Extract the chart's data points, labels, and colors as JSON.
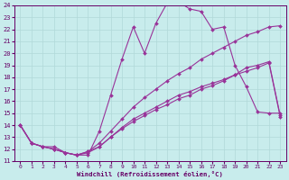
{
  "xlabel": "Windchill (Refroidissement éolien,°C)",
  "bg_color": "#c8ecec",
  "grid_color": "#b0d8d8",
  "line_color": "#993399",
  "xlim": [
    -0.5,
    23.5
  ],
  "ylim": [
    11,
    24
  ],
  "xticks": [
    0,
    1,
    2,
    3,
    4,
    5,
    6,
    7,
    8,
    9,
    10,
    11,
    12,
    13,
    14,
    15,
    16,
    17,
    18,
    19,
    20,
    21,
    22,
    23
  ],
  "yticks": [
    11,
    12,
    13,
    14,
    15,
    16,
    17,
    18,
    19,
    20,
    21,
    22,
    23,
    24
  ],
  "line1_x": [
    0,
    1,
    2,
    3,
    4,
    5,
    6,
    7,
    8,
    9,
    10,
    11,
    12,
    13,
    14,
    15,
    16,
    17,
    18,
    19,
    20,
    21,
    22,
    23
  ],
  "line1_y": [
    14.0,
    12.5,
    12.2,
    12.2,
    11.7,
    11.5,
    11.5,
    13.5,
    16.5,
    19.5,
    22.2,
    20.0,
    22.5,
    24.2,
    24.3,
    23.7,
    23.5,
    22.0,
    22.2,
    19.0,
    17.2,
    15.1,
    15.0,
    15.0
  ],
  "line2_x": [
    0,
    1,
    2,
    3,
    4,
    5,
    6,
    7,
    8,
    9,
    10,
    11,
    12,
    13,
    14,
    15,
    16,
    17,
    18,
    19,
    20,
    21,
    22,
    23
  ],
  "line2_y": [
    14.0,
    12.5,
    12.2,
    12.0,
    11.7,
    11.5,
    11.8,
    12.5,
    13.5,
    14.5,
    15.5,
    16.3,
    17.0,
    17.7,
    18.3,
    18.8,
    19.5,
    20.0,
    20.5,
    21.0,
    21.5,
    21.8,
    22.2,
    22.3
  ],
  "line3_x": [
    0,
    1,
    2,
    3,
    4,
    5,
    6,
    7,
    8,
    9,
    10,
    11,
    12,
    13,
    14,
    15,
    16,
    17,
    18,
    19,
    20,
    21,
    22,
    23
  ],
  "line3_y": [
    14.0,
    12.5,
    12.2,
    12.0,
    11.7,
    11.5,
    11.8,
    12.2,
    13.0,
    13.7,
    14.3,
    14.8,
    15.3,
    15.7,
    16.2,
    16.5,
    17.0,
    17.3,
    17.7,
    18.2,
    18.8,
    19.0,
    19.3,
    14.8
  ],
  "line4_x": [
    0,
    1,
    2,
    3,
    4,
    5,
    6,
    7,
    8,
    9,
    10,
    11,
    12,
    13,
    14,
    15,
    16,
    17,
    18,
    19,
    20,
    21,
    22,
    23
  ],
  "line4_y": [
    14.0,
    12.5,
    12.2,
    12.0,
    11.7,
    11.5,
    11.7,
    12.2,
    13.0,
    13.8,
    14.5,
    15.0,
    15.5,
    16.0,
    16.5,
    16.8,
    17.2,
    17.5,
    17.8,
    18.2,
    18.5,
    18.8,
    19.2,
    14.7
  ]
}
